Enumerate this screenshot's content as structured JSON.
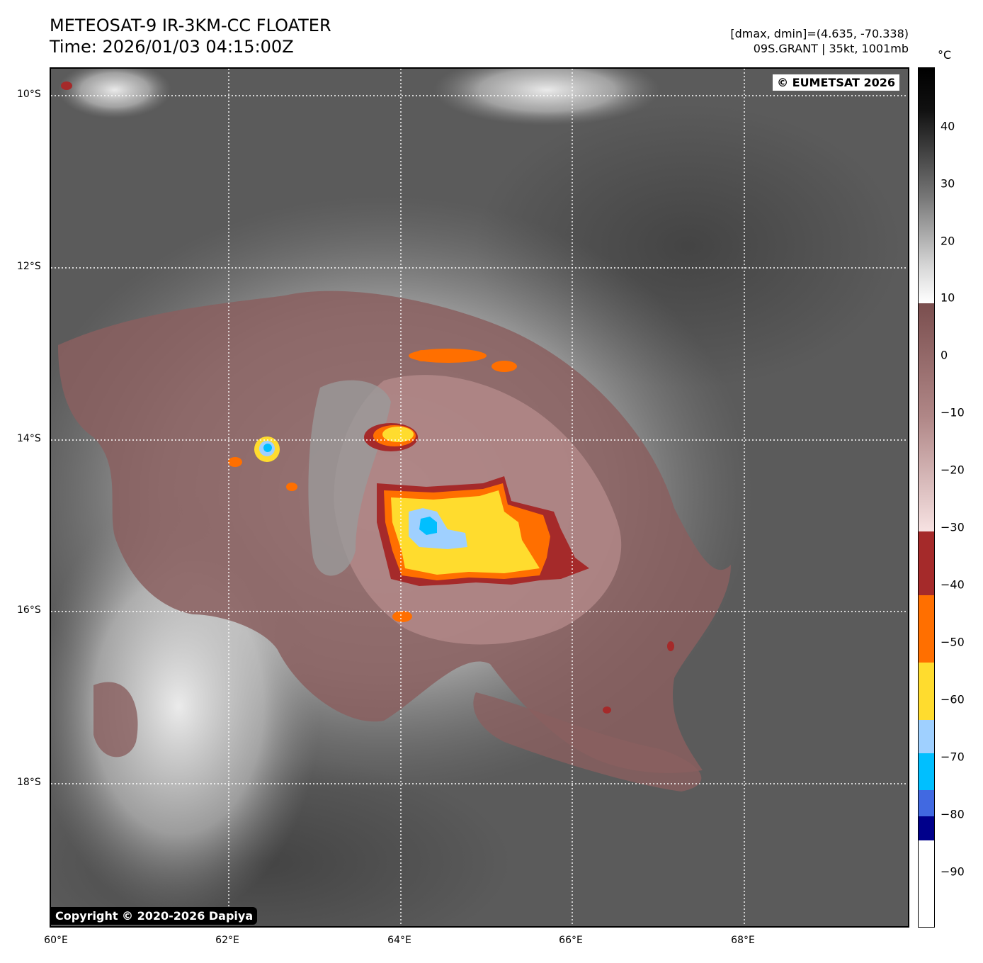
{
  "header": {
    "title_line1": "METEOSAT-9 IR-3KM-CC FLOATER",
    "title_line2": "Time: 2026/01/03 04:15:00Z",
    "info_line1": "[dmax, dmin]=(4.635, -70.338)",
    "info_line2": "09S.GRANT | 35kt, 1001mb"
  },
  "map": {
    "copyright_eumetsat": "© EUMETSAT 2026",
    "copyright_dapiya": "Copyright © 2020-2026 Dapiya",
    "lat_labels": [
      "10°S",
      "12°S",
      "14°S",
      "16°S",
      "18°S"
    ],
    "lon_labels": [
      "60°E",
      "62°E",
      "64°E",
      "66°E",
      "68°E"
    ],
    "colors": {
      "background_gray": "#5b5b5b",
      "cloud_white": "#e6e6e6",
      "cloud_mauve": "#8a5f5f",
      "cold_red": "#a52a2a",
      "cold_orange": "#ff6f00",
      "cold_yellow": "#ffdc2e",
      "cold_lightblue": "#9fd0ff",
      "cold_cyan": "#00bfff"
    }
  },
  "colorbar": {
    "unit": "°C",
    "ticks": [
      "40",
      "30",
      "20",
      "10",
      "0",
      "−10",
      "−20",
      "−30",
      "−40",
      "−50",
      "−60",
      "−70",
      "−80",
      "−90"
    ]
  }
}
